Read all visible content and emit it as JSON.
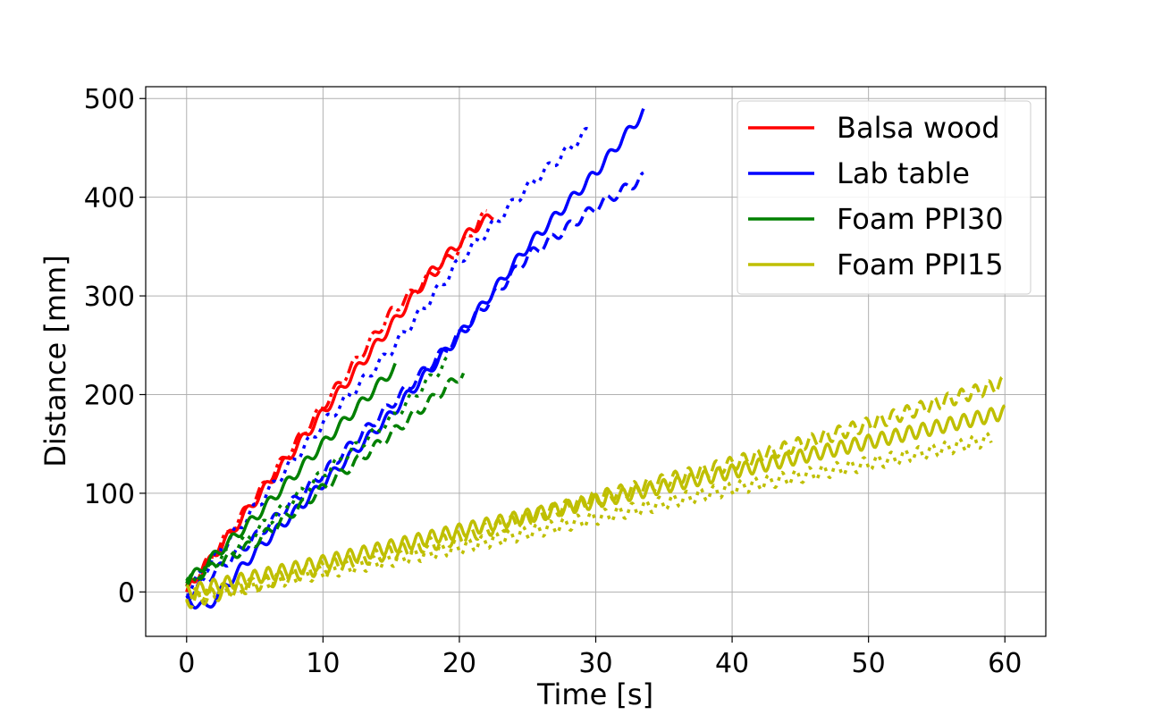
{
  "chart_data": {
    "type": "line",
    "xlabel": "Time [s]",
    "ylabel": "Distance [mm]",
    "xlim": [
      -3,
      63
    ],
    "ylim": [
      -45,
      512
    ],
    "xticks": [
      0,
      10,
      20,
      30,
      40,
      50,
      60
    ],
    "yticks": [
      0,
      100,
      200,
      300,
      400,
      500
    ],
    "grid": true,
    "legend_position": "top-right",
    "legend": [
      {
        "label": "Balsa wood",
        "color": "#ff0000"
      },
      {
        "label": "Lab table",
        "color": "#0000ff"
      },
      {
        "label": "Foam PPI30",
        "color": "#008000"
      },
      {
        "label": "Foam PPI15",
        "color": "#bfbf00"
      }
    ],
    "series": [
      {
        "material": "Balsa wood",
        "color": "#ff0000",
        "dash": "solid",
        "x": [
          0,
          5,
          10,
          15,
          18,
          21,
          22.5
        ],
        "y": [
          0,
          92,
          182,
          270,
          325,
          368,
          382
        ]
      },
      {
        "material": "Balsa wood",
        "color": "#ff0000",
        "dash": "dashdot",
        "x": [
          0,
          5,
          10,
          15,
          20,
          22
        ],
        "y": [
          2,
          95,
          188,
          283,
          348,
          385
        ]
      },
      {
        "material": "Lab table",
        "color": "#0000ff",
        "dash": "solid",
        "x": [
          0,
          1.5,
          5,
          10,
          15,
          20,
          25,
          30,
          33.5
        ],
        "y": [
          -8,
          -16,
          40,
          110,
          180,
          260,
          350,
          425,
          486
        ]
      },
      {
        "material": "Lab table",
        "color": "#0000ff",
        "dash": "dashed",
        "x": [
          0,
          5,
          10,
          15,
          20,
          25,
          30,
          33.5
        ],
        "y": [
          -5,
          55,
          120,
          190,
          260,
          340,
          390,
          420
        ]
      },
      {
        "material": "Lab table",
        "color": "#0000ff",
        "dash": "dotted",
        "x": [
          0,
          5,
          10,
          15,
          20,
          25,
          29.5
        ],
        "y": [
          0,
          85,
          170,
          245,
          335,
          410,
          468
        ]
      },
      {
        "material": "Foam PPI30",
        "color": "#008000",
        "dash": "solid",
        "x": [
          0,
          5,
          10,
          15.3
        ],
        "y": [
          10,
          75,
          150,
          228
        ]
      },
      {
        "material": "Foam PPI30",
        "color": "#008000",
        "dash": "dashed",
        "x": [
          0,
          5,
          10,
          15,
          20.3
        ],
        "y": [
          10,
          50,
          105,
          160,
          222
        ]
      },
      {
        "material": "Foam PPI30",
        "color": "#008000",
        "dash": "dotted",
        "x": [
          0,
          5,
          10,
          15,
          19.2
        ],
        "y": [
          8,
          60,
          120,
          175,
          235
        ]
      },
      {
        "material": "Foam PPI15",
        "color": "#bfbf00",
        "dash": "solid",
        "x": [
          0,
          10,
          20,
          30,
          40,
          50,
          60
        ],
        "y": [
          0,
          30,
          62,
          92,
          122,
          152,
          182
        ]
      },
      {
        "material": "Foam PPI15",
        "color": "#bfbf00",
        "dash": "dashed",
        "x": [
          0,
          10,
          20,
          30,
          40,
          50,
          60
        ],
        "y": [
          -10,
          25,
          55,
          95,
          130,
          170,
          212
        ]
      },
      {
        "material": "Foam PPI15",
        "color": "#bfbf00",
        "dash": "dotted",
        "x": [
          0,
          10,
          20,
          30,
          40,
          50,
          59
        ],
        "y": [
          -5,
          20,
          45,
          75,
          105,
          130,
          155
        ]
      }
    ]
  }
}
